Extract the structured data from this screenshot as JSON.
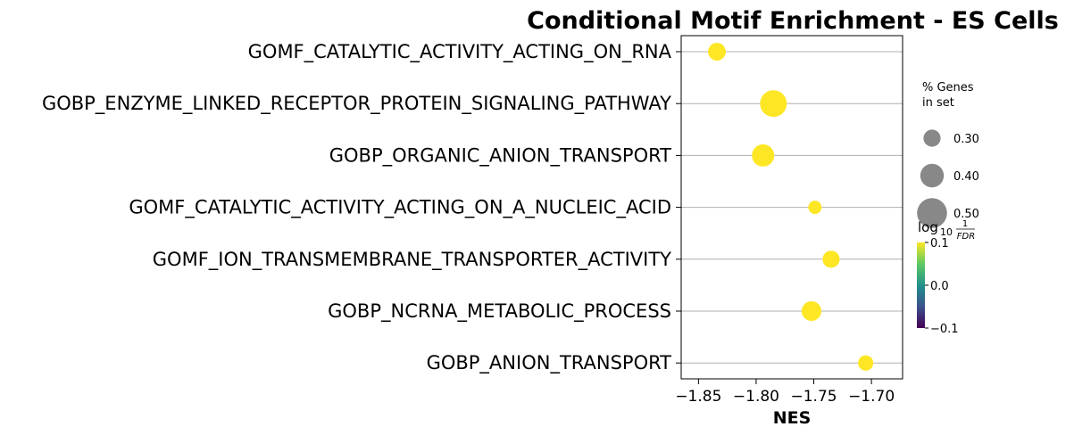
{
  "chart_data": {
    "type": "scatter",
    "title": "Conditional Motif Enrichment - ES Cells",
    "xlabel": "NES",
    "ylabel": "",
    "xlim": [
      -1.865,
      -1.673
    ],
    "xticks": [
      -1.85,
      -1.8,
      -1.75,
      -1.7
    ],
    "xtick_labels": [
      "−1.85",
      "−1.80",
      "−1.75",
      "−1.70"
    ],
    "grid": "horizontal",
    "categories": [
      "GOMF_CATALYTIC_ACTIVITY_ACTING_ON_RNA",
      "GOBP_ENZYME_LINKED_RECEPTOR_PROTEIN_SIGNALING_PATHWAY",
      "GOBP_ORGANIC_ANION_TRANSPORT",
      "GOMF_CATALYTIC_ACTIVITY_ACTING_ON_A_NUCLEIC_ACID",
      "GOMF_ION_TRANSMEMBRANE_TRANSPORTER_ACTIVITY",
      "GOBP_NCRNA_METABOLIC_PROCESS",
      "GOBP_ANION_TRANSPORT"
    ],
    "x": [
      -1.834,
      -1.785,
      -1.794,
      -1.749,
      -1.735,
      -1.752,
      -1.705
    ],
    "gene_pct": [
      0.31,
      0.45,
      0.38,
      0.24,
      0.3,
      0.34,
      0.27
    ],
    "point_color": "#fde725",
    "size_legend": {
      "title_line1": "% Genes",
      "title_line2": "in set",
      "values": [
        0.3,
        0.4,
        0.5
      ],
      "labels": [
        "0.30",
        "0.40",
        "0.50"
      ],
      "color": "#888888"
    },
    "colorbar": {
      "label_main": "log",
      "label_sub": "10",
      "label_num": "1",
      "label_den": "FDR",
      "min": -0.1,
      "max": 0.1,
      "ticks": [
        "0.1",
        "0.0",
        "−0.1"
      ],
      "colors": [
        "#440154",
        "#3b528b",
        "#21918c",
        "#5ec962",
        "#fde725"
      ]
    }
  }
}
